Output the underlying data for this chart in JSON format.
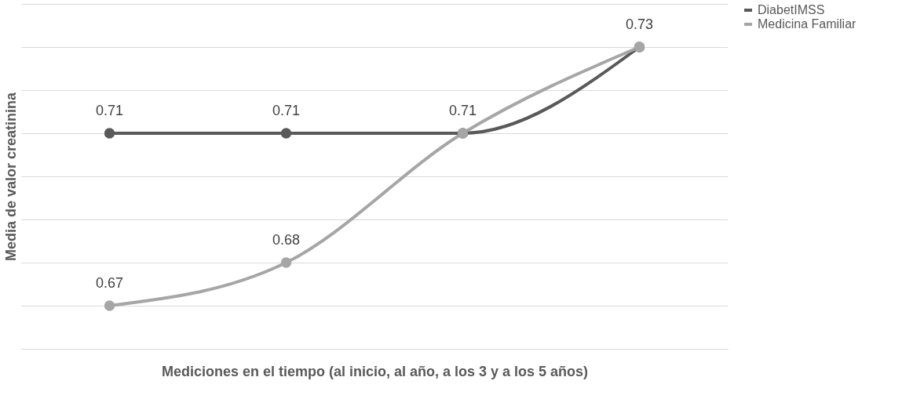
{
  "chart_data": {
    "type": "line",
    "xlabel": "Mediciones en el tiempo (al inicio, al año, a los 3 y a los 5 años)",
    "ylabel": "Media de valor creatinina",
    "categories": [
      null,
      null,
      null,
      null
    ],
    "series": [
      {
        "name": "DiabetIMSS",
        "color": "#595959",
        "values": [
          0.71,
          0.71,
          0.71,
          0.73
        ],
        "value_labels": [
          "0.71",
          "0.71",
          "0.71",
          "0.73"
        ]
      },
      {
        "name": "Medicina Familiar",
        "color": "#a6a6a6",
        "values": [
          0.67,
          0.68,
          0.71,
          0.73
        ],
        "value_labels": [
          "0.67",
          "0.68",
          null,
          null
        ]
      }
    ],
    "ylim": [
      0.66,
      0.74
    ],
    "yticks": [
      {
        "value": 0.66,
        "label": null
      },
      {
        "value": 0.67,
        "label": null
      },
      {
        "value": 0.68,
        "label": null
      },
      {
        "value": 0.69,
        "label": null
      },
      {
        "value": 0.7,
        "label": null
      },
      {
        "value": 0.71,
        "label": null
      },
      {
        "value": 0.72,
        "label": null
      },
      {
        "value": 0.73,
        "label": null
      },
      {
        "value": 0.74,
        "label": null
      }
    ],
    "grid": "y",
    "legend": "right",
    "tick_labels": false,
    "marker": "circle",
    "line_style": "solid"
  }
}
